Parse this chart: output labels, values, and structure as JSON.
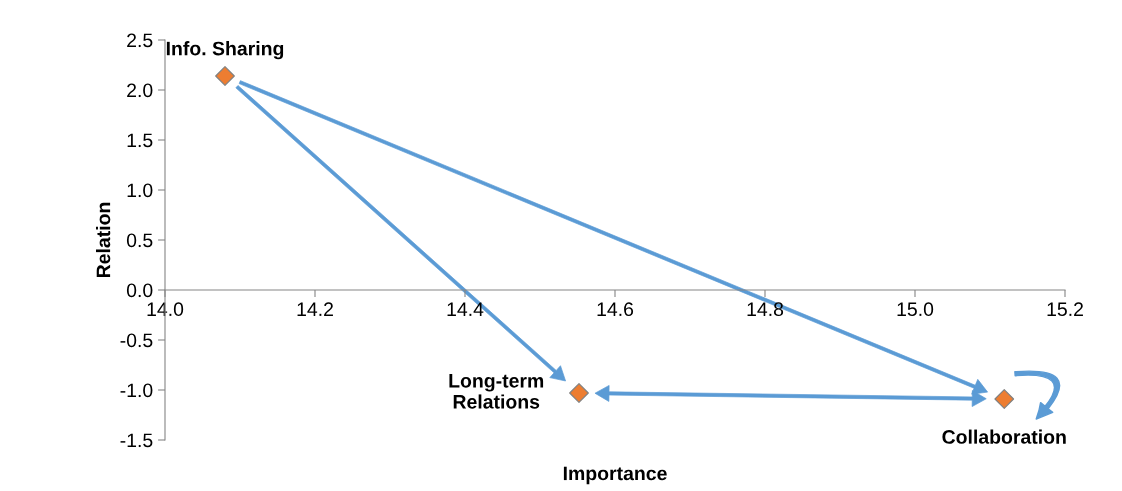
{
  "chart_data": {
    "type": "scatter",
    "xlabel": "Importance",
    "ylabel": "Relation",
    "x": [
      14.08,
      14.552,
      15.119
    ],
    "series": [
      {
        "color": "#ed7d31",
        "values": [
          2.14,
          -1.03,
          -1.09
        ]
      }
    ],
    "marker": "diamond",
    "grid": false,
    "legend": false,
    "xlim": [
      14.0,
      15.2
    ],
    "xticks": [
      {
        "value": 14.0,
        "label": "14.0"
      },
      14.2,
      14.4,
      14.6,
      14.8,
      {
        "value": 15.0,
        "label": "15.0"
      },
      15.2
    ],
    "ylim": [
      -1.5,
      2.5
    ],
    "yticks": [
      {
        "value": -1.5,
        "label": "-1.5"
      },
      {
        "value": -1.0,
        "label": "-1.0"
      },
      {
        "value": -0.5,
        "label": "-0.5"
      },
      {
        "value": 0.0,
        "label": "0.0"
      },
      0.5,
      {
        "value": 1.0,
        "label": "1.0"
      },
      1.5,
      {
        "value": 2.0,
        "label": "2.0"
      },
      2.5
    ],
    "annotations": [
      {
        "text": "Info. Sharing",
        "x": 14.08,
        "y": 2.14
      },
      {
        "text": "Long-term\nRelations",
        "x": 14.552,
        "y": -1.03
      },
      {
        "text": "Collaboration",
        "x": 15.119,
        "y": -1.09
      }
    ]
  }
}
